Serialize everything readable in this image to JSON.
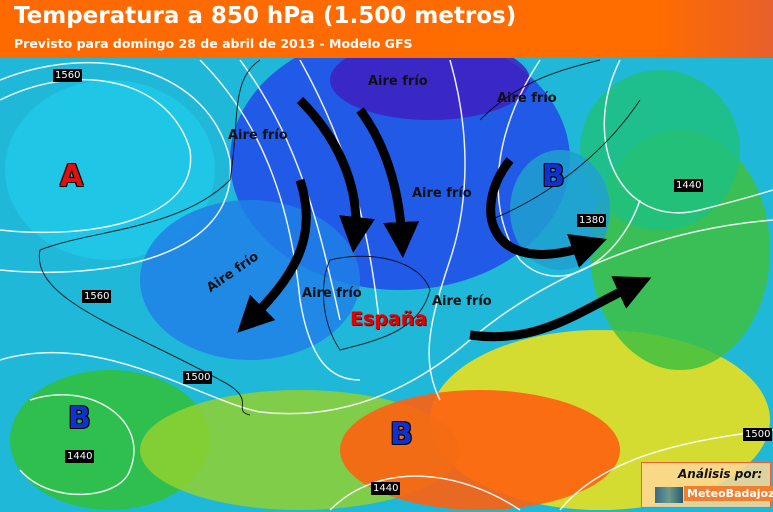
{
  "header": {
    "title": "Temperatura a 850 hPa (1.500 metros)",
    "subtitle": "Previsto para domingo 28 de abril de 2013 - Modelo GFS"
  },
  "contour_labels": [
    "1560",
    "1560",
    "1500",
    "1440",
    "1380",
    "1500",
    "1440",
    "1440"
  ],
  "annotations": {
    "cold_air": [
      "Aire frío",
      "Aire frío",
      "Aire frío",
      "Aire frío",
      "Aire frío",
      "Aire frío",
      "Aire frío"
    ],
    "country": "España"
  },
  "pressure_centers": [
    {
      "label": "A",
      "type": "high",
      "color": "#e01010"
    },
    {
      "label": "B",
      "type": "low",
      "color": "#1030d0"
    },
    {
      "label": "B",
      "type": "low",
      "color": "#1030d0"
    },
    {
      "label": "B",
      "type": "low",
      "color": "#1030d0"
    }
  ],
  "credit": {
    "label": "Análisis por:",
    "brand": "MeteoBadajoz"
  },
  "colors": {
    "header": "#ff6a00",
    "cold": "#2040e0",
    "warm": "#ff5010"
  }
}
